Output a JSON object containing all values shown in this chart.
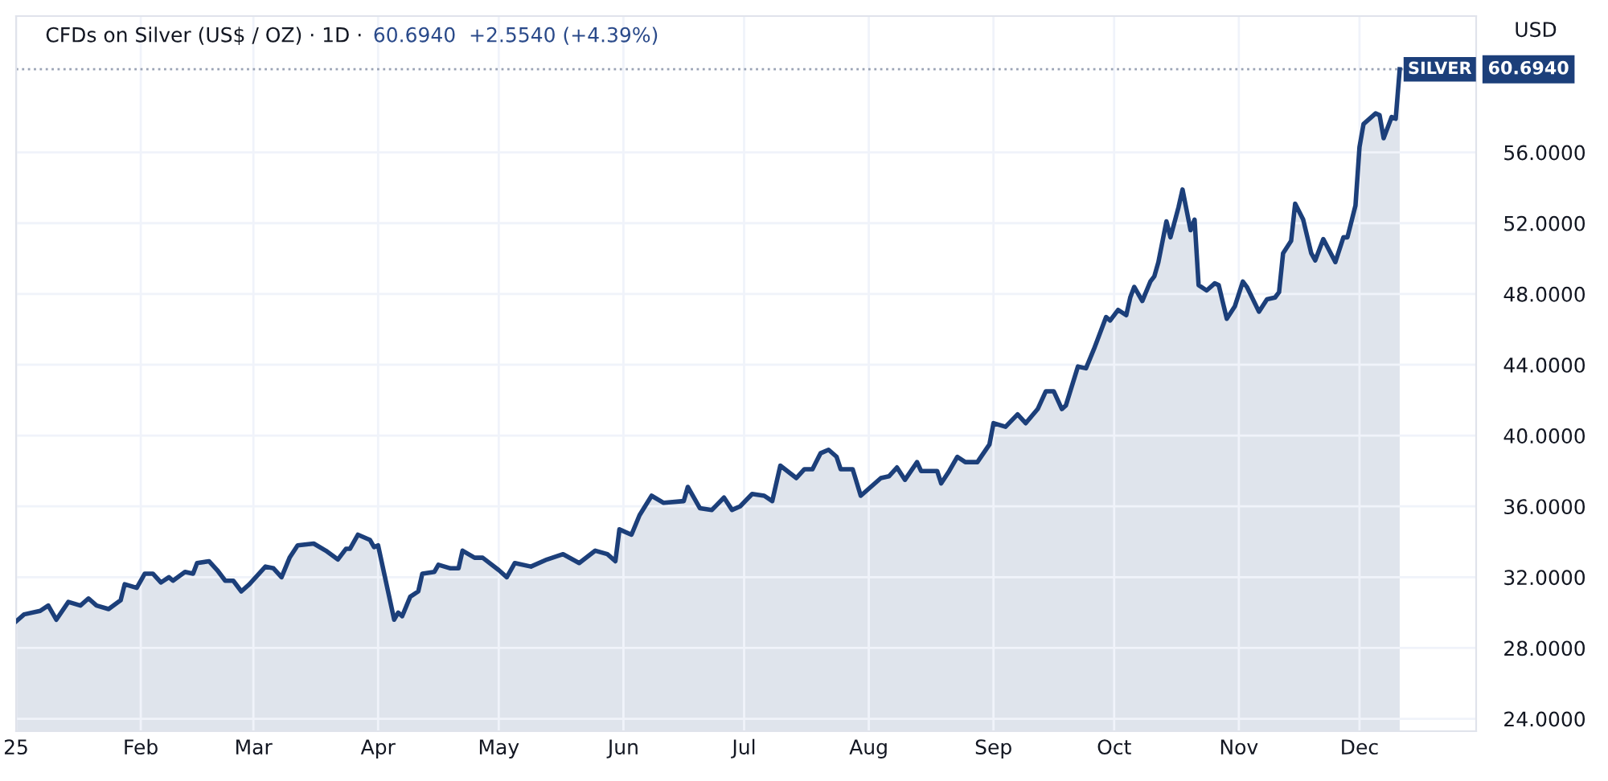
{
  "chart_data": {
    "type": "area",
    "title": "CFDs on Silver (US$ / OZ) · 1D ·",
    "annotations": [
      "60.6940  +2.5540 (+4.39%)",
      "60.6940"
    ],
    "ylabel": "USD",
    "x": [
      "2025-01-01",
      "2025-01-03",
      "2025-01-07",
      "2025-01-09",
      "2025-01-11",
      "2025-01-14",
      "2025-01-17",
      "2025-01-19",
      "2025-01-21",
      "2025-01-24",
      "2025-01-27",
      "2025-01-28",
      "2025-01-31",
      "2025-02-02",
      "2025-02-04",
      "2025-02-06",
      "2025-02-08",
      "2025-02-09",
      "2025-02-12",
      "2025-02-14",
      "2025-02-15",
      "2025-02-18",
      "2025-02-20",
      "2025-02-22",
      "2025-02-24",
      "2025-02-26",
      "2025-02-28",
      "2025-03-04",
      "2025-03-06",
      "2025-03-08",
      "2025-03-10",
      "2025-03-12",
      "2025-03-16",
      "2025-03-19",
      "2025-03-22",
      "2025-03-24",
      "2025-03-25",
      "2025-03-27",
      "2025-03-30",
      "2025-03-31",
      "2025-04-01",
      "2025-04-05",
      "2025-04-06",
      "2025-04-07",
      "2025-04-09",
      "2025-04-11",
      "2025-04-12",
      "2025-04-15",
      "2025-04-16",
      "2025-04-19",
      "2025-04-21",
      "2025-04-22",
      "2025-04-25",
      "2025-04-27",
      "2025-05-01",
      "2025-05-03",
      "2025-05-05",
      "2025-05-09",
      "2025-05-13",
      "2025-05-17",
      "2025-05-21",
      "2025-05-25",
      "2025-05-28",
      "2025-05-30",
      "2025-05-31",
      "2025-06-03",
      "2025-06-05",
      "2025-06-08",
      "2025-06-11",
      "2025-06-16",
      "2025-06-17",
      "2025-06-20",
      "2025-06-23",
      "2025-06-26",
      "2025-06-28",
      "2025-06-30",
      "2025-07-03",
      "2025-07-06",
      "2025-07-08",
      "2025-07-10",
      "2025-07-14",
      "2025-07-16",
      "2025-07-18",
      "2025-07-20",
      "2025-07-22",
      "2025-07-24",
      "2025-07-25",
      "2025-07-28",
      "2025-07-30",
      "2025-08-04",
      "2025-08-06",
      "2025-08-08",
      "2025-08-10",
      "2025-08-13",
      "2025-08-14",
      "2025-08-18",
      "2025-08-19",
      "2025-08-21",
      "2025-08-23",
      "2025-08-25",
      "2025-08-28",
      "2025-08-31",
      "2025-09-01",
      "2025-09-04",
      "2025-09-07",
      "2025-09-09",
      "2025-09-12",
      "2025-09-14",
      "2025-09-16",
      "2025-09-18",
      "2025-09-19",
      "2025-09-22",
      "2025-09-24",
      "2025-09-26",
      "2025-09-29",
      "2025-09-30",
      "2025-10-02",
      "2025-10-04",
      "2025-10-05",
      "2025-10-06",
      "2025-10-08",
      "2025-10-10",
      "2025-10-11",
      "2025-10-12",
      "2025-10-14",
      "2025-10-15",
      "2025-10-17",
      "2025-10-18",
      "2025-10-20",
      "2025-10-21",
      "2025-10-22",
      "2025-10-24",
      "2025-10-26",
      "2025-10-27",
      "2025-10-29",
      "2025-10-31",
      "2025-11-02",
      "2025-11-03",
      "2025-11-06",
      "2025-11-08",
      "2025-11-10",
      "2025-11-11",
      "2025-11-12",
      "2025-11-14",
      "2025-11-15",
      "2025-11-17",
      "2025-11-19",
      "2025-11-20",
      "2025-11-22",
      "2025-11-25",
      "2025-11-27",
      "2025-11-28",
      "2025-11-30",
      "2025-12-01",
      "2025-12-02",
      "2025-12-05",
      "2025-12-06",
      "2025-12-07",
      "2025-12-09",
      "2025-12-10",
      "2025-12-11"
    ],
    "series": [
      {
        "color": "#1c3f7a",
        "values": [
          29.5,
          29.9,
          30.1,
          30.4,
          29.6,
          30.6,
          30.4,
          30.8,
          30.4,
          30.2,
          30.7,
          31.6,
          31.4,
          32.2,
          32.2,
          31.7,
          32.0,
          31.8,
          32.3,
          32.2,
          32.8,
          32.9,
          32.4,
          31.8,
          31.8,
          31.2,
          31.6,
          32.6,
          32.5,
          32.0,
          33.1,
          33.8,
          33.9,
          33.5,
          33.0,
          33.6,
          33.6,
          34.4,
          34.1,
          33.7,
          33.8,
          29.6,
          30.0,
          29.8,
          30.9,
          31.2,
          32.2,
          32.3,
          32.7,
          32.5,
          32.5,
          33.5,
          33.1,
          33.1,
          32.4,
          32.0,
          32.8,
          32.6,
          33.0,
          33.3,
          32.8,
          33.5,
          33.3,
          32.9,
          34.7,
          34.4,
          35.5,
          36.6,
          36.2,
          36.3,
          37.1,
          35.9,
          35.8,
          36.5,
          35.8,
          36.0,
          36.7,
          36.6,
          36.3,
          38.3,
          37.6,
          38.1,
          38.1,
          39.0,
          39.2,
          38.8,
          38.1,
          38.1,
          36.6,
          37.6,
          37.7,
          38.2,
          37.5,
          38.5,
          38.0,
          38.0,
          37.3,
          38.0,
          38.8,
          38.5,
          38.5,
          39.5,
          40.7,
          40.5,
          41.2,
          40.7,
          41.5,
          42.5,
          42.5,
          41.5,
          41.7,
          43.9,
          43.8,
          44.9,
          46.7,
          46.5,
          47.1,
          46.8,
          47.8,
          48.4,
          47.6,
          48.7,
          49.0,
          49.8,
          52.1,
          51.2,
          52.9,
          53.9,
          51.6,
          52.2,
          48.5,
          48.2,
          48.6,
          48.5,
          46.6,
          47.3,
          48.7,
          48.4,
          47.0,
          47.7,
          47.8,
          48.1,
          50.3,
          51.0,
          53.1,
          52.2,
          50.3,
          49.9,
          51.1,
          49.8,
          51.2,
          51.2,
          53.0,
          56.3,
          57.6,
          58.2,
          58.1,
          56.8,
          58.0,
          57.9,
          60.694
        ]
      }
    ],
    "xlim": [
      "2025-01-01",
      "2025-12-30"
    ],
    "xticks": [
      {
        "value": "2025-01-01",
        "label": "25"
      },
      {
        "value": "2025-02-01",
        "label": "Feb"
      },
      {
        "value": "2025-03-01",
        "label": "Mar"
      },
      {
        "value": "2025-04-01",
        "label": "Apr"
      },
      {
        "value": "2025-05-01",
        "label": "May"
      },
      {
        "value": "2025-06-01",
        "label": "Jun"
      },
      {
        "value": "2025-07-01",
        "label": "Jul"
      },
      {
        "value": "2025-08-01",
        "label": "Aug"
      },
      {
        "value": "2025-09-01",
        "label": "Sep"
      },
      {
        "value": "2025-10-01",
        "label": "Oct"
      },
      {
        "value": "2025-11-01",
        "label": "Nov"
      },
      {
        "value": "2025-12-01",
        "label": "Dec"
      }
    ],
    "ylim": [
      23.3,
      63.7
    ],
    "yticks": [
      {
        "value": 24,
        "label": "24.0000"
      },
      {
        "value": 28,
        "label": "28.0000"
      },
      {
        "value": 32,
        "label": "32.0000"
      },
      {
        "value": 36,
        "label": "36.0000"
      },
      {
        "value": 40,
        "label": "40.0000"
      },
      {
        "value": 44,
        "label": "44.0000"
      },
      {
        "value": 48,
        "label": "48.0000"
      },
      {
        "value": 52,
        "label": "52.0000"
      },
      {
        "value": 56,
        "label": "56.0000"
      }
    ],
    "ref_lines": [
      {
        "axis": "y",
        "value": 60.694,
        "label": "SILVER",
        "color": "#9aa3b5",
        "line_style": "dotted"
      }
    ],
    "grid": true
  }
}
